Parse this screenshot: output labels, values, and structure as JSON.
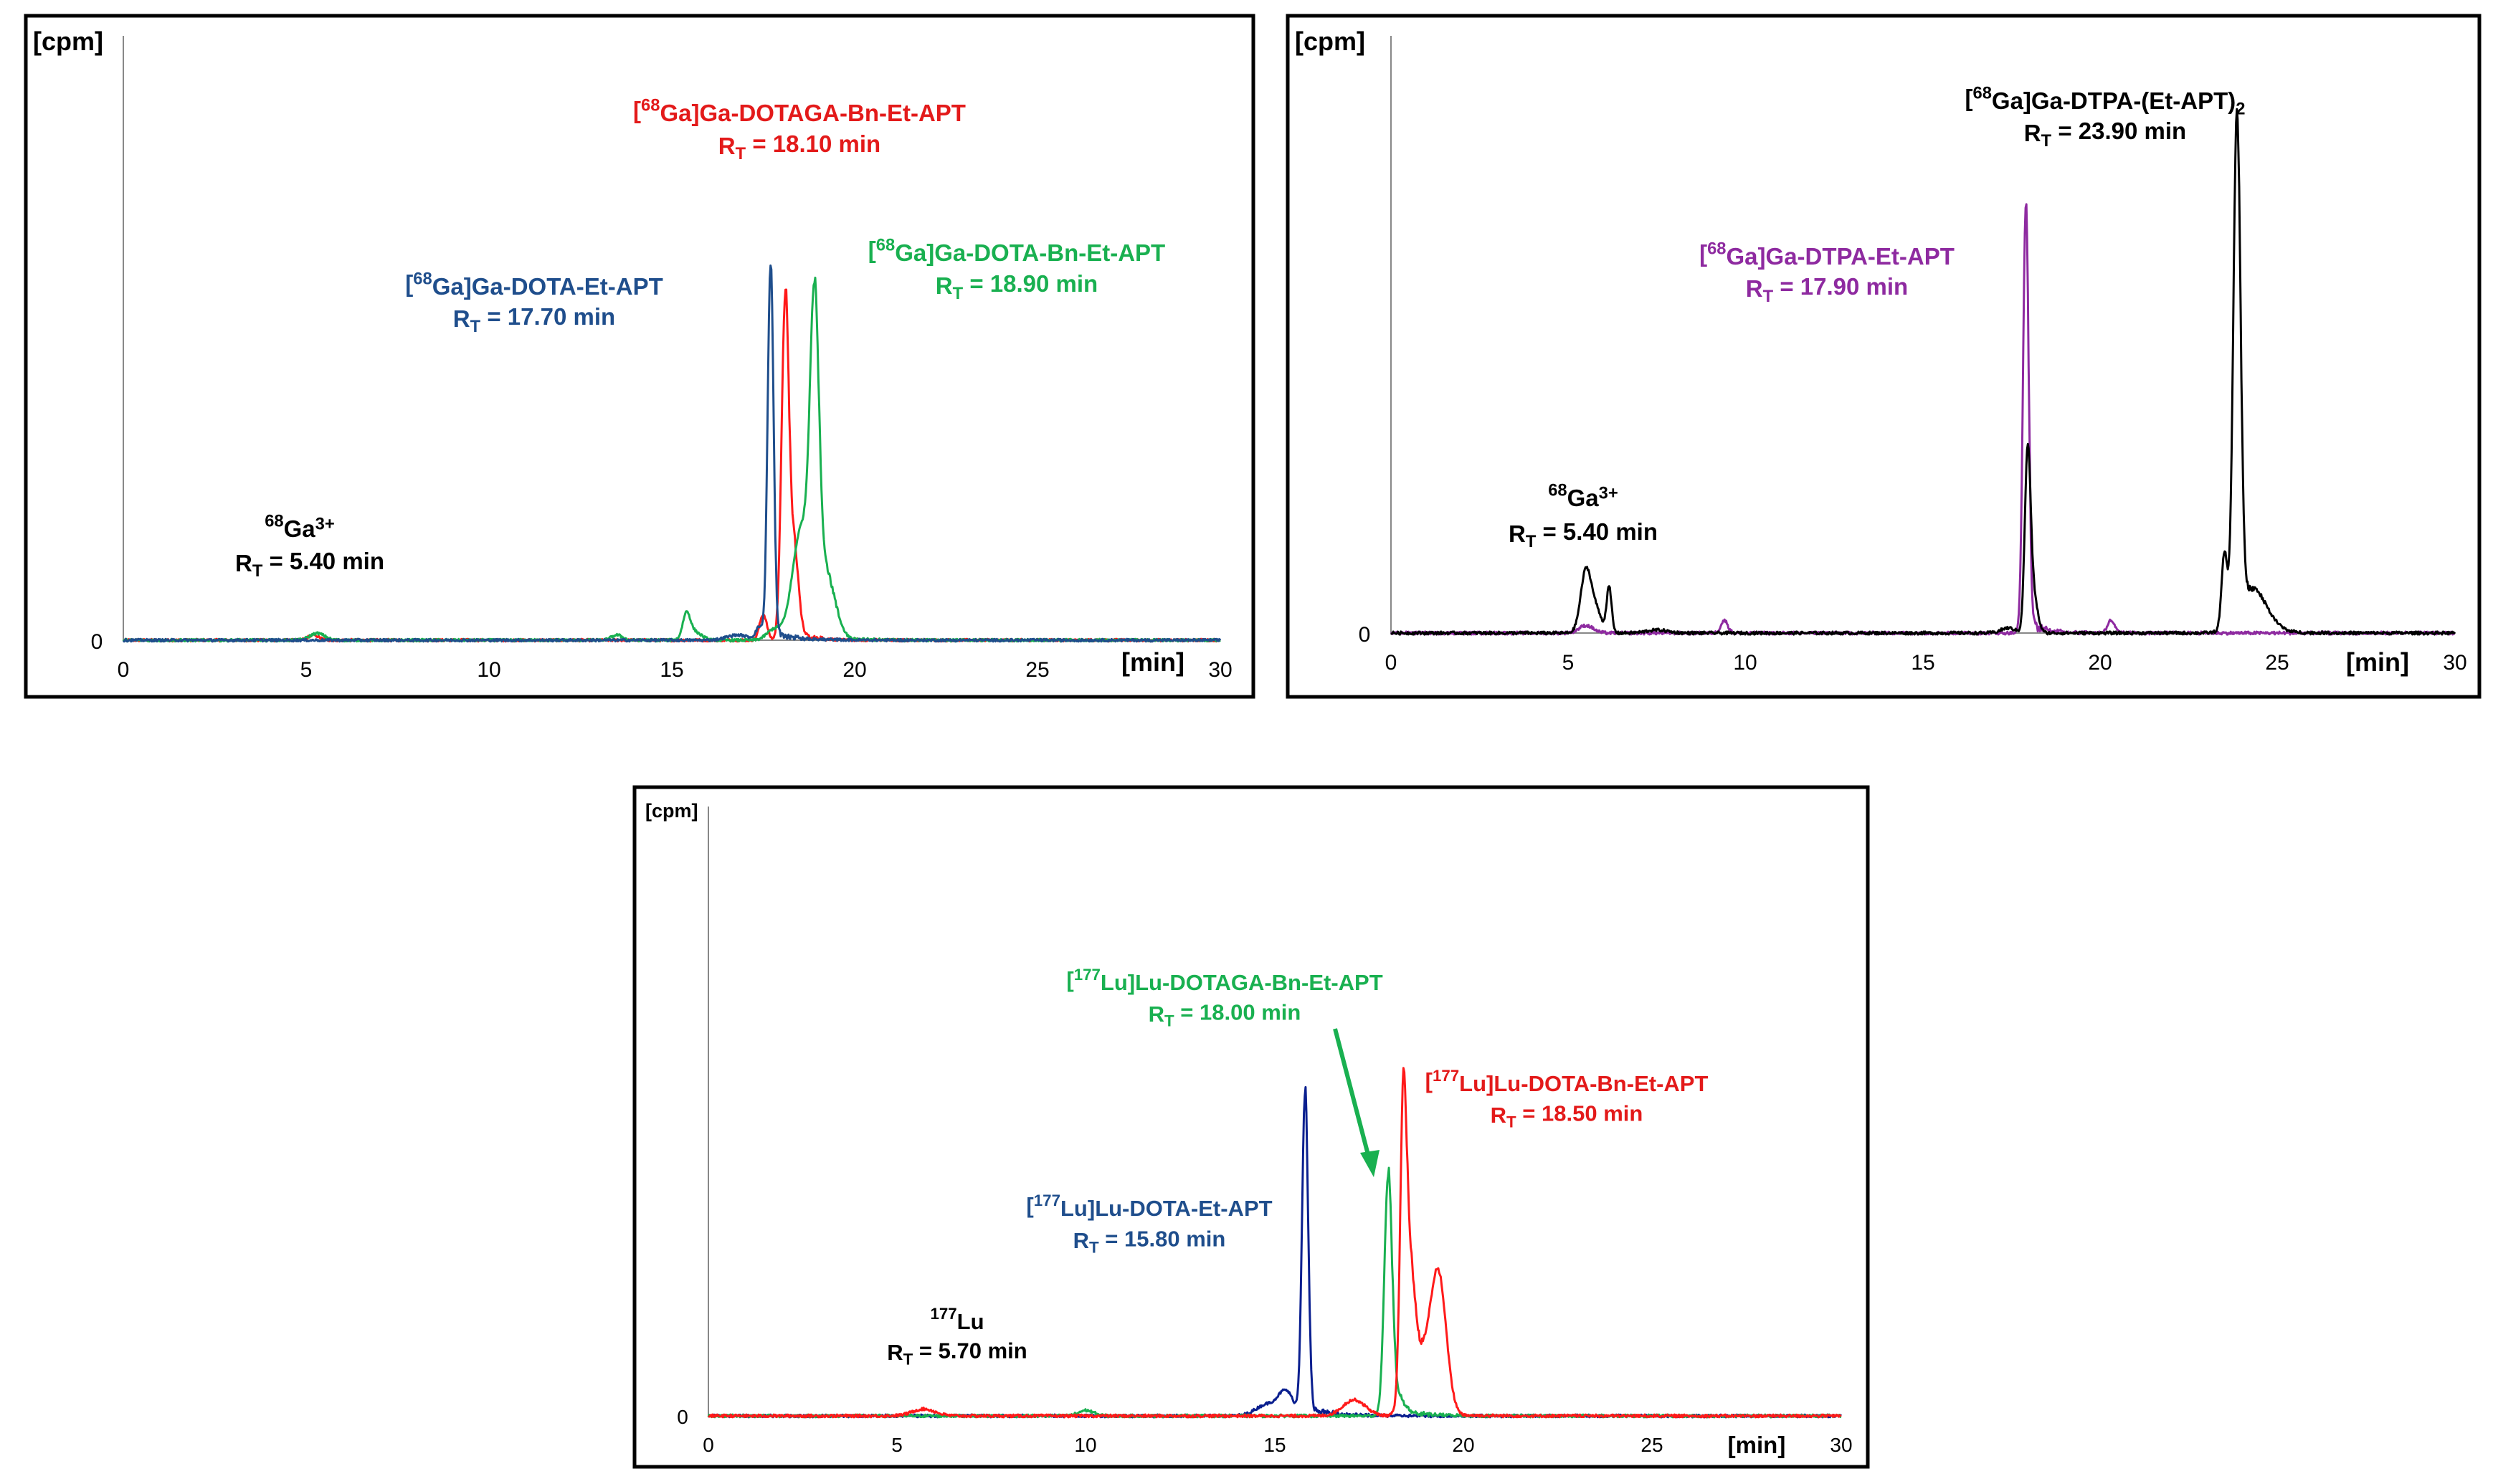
{
  "chart_data": [
    {
      "type": "line",
      "ylabel": "[cpm]",
      "xlabel": "[min]",
      "xlim": [
        0,
        30
      ],
      "x_ticks": [
        "0",
        "5",
        "10",
        "15",
        "20",
        "25",
        "30"
      ],
      "y_ticks": [
        "0"
      ],
      "series": [
        {
          "name": "[68Ga]Ga-DOTAGA-Bn-Et-APT",
          "color": "#ff1a1a",
          "peaks": [
            {
              "x": 5.2,
              "h": 0.012,
              "w": 0.15
            },
            {
              "x": 17.5,
              "h": 0.06,
              "w": 0.1
            },
            {
              "x": 18.1,
              "h": 0.78,
              "w": 0.1
            },
            {
              "x": 18.35,
              "h": 0.2,
              "w": 0.12
            }
          ],
          "tailx": 18.1
        },
        {
          "name": "[68Ga]Ga-DOTA-Bn-Et-APT",
          "color": "#19b050",
          "peaks": [
            {
              "x": 5.3,
              "h": 0.016,
              "w": 0.2
            },
            {
              "x": 13.5,
              "h": 0.012,
              "w": 0.15
            },
            {
              "x": 15.4,
              "h": 0.055,
              "w": 0.1
            },
            {
              "x": 15.6,
              "h": 0.02,
              "w": 0.2
            },
            {
              "x": 17.8,
              "h": 0.025,
              "w": 0.2
            },
            {
              "x": 18.55,
              "h": 0.26,
              "w": 0.25
            },
            {
              "x": 18.9,
              "h": 0.66,
              "w": 0.12
            },
            {
              "x": 19.2,
              "h": 0.15,
              "w": 0.25
            }
          ],
          "tailx": 18.9
        },
        {
          "name": "[68Ga]Ga-DOTA-Et-APT",
          "color": "#1f4e8c",
          "peaks": [
            {
              "x": 16.8,
              "h": 0.012,
              "w": 0.3
            },
            {
              "x": 17.4,
              "h": 0.03,
              "w": 0.1
            },
            {
              "x": 17.7,
              "h": 0.87,
              "w": 0.08
            }
          ],
          "tailx": 17.7
        }
      ],
      "annotations": [
        {
          "label": "[68Ga]Ga-DOTAGA-Bn-Et-APT",
          "rt": "RT = 18.10 min",
          "color": "#e31a1a"
        },
        {
          "label": "[68Ga]Ga-DOTA-Et-APT",
          "rt": "RT = 17.70 min",
          "color": "#1f4e8c"
        },
        {
          "label": "[68Ga]Ga-DOTA-Bn-Et-APT",
          "rt": "RT = 18.90 min",
          "color": "#19b050"
        },
        {
          "label": "68Ga3+",
          "rt": "RT = 5.40 min",
          "color": "#000000"
        }
      ]
    },
    {
      "type": "line",
      "ylabel": "[cpm]",
      "xlabel": "[min]",
      "xlim": [
        0,
        30
      ],
      "x_ticks": [
        "0",
        "5",
        "10",
        "15",
        "20",
        "25",
        "30"
      ],
      "y_ticks": [
        "0"
      ],
      "series": [
        {
          "name": "[68Ga]Ga-DTPA-Et-APT",
          "color": "#8e2aa0",
          "peaks": [
            {
              "x": 5.5,
              "h": 0.015,
              "w": 0.2
            },
            {
              "x": 9.4,
              "h": 0.025,
              "w": 0.1
            },
            {
              "x": 17.9,
              "h": 0.85,
              "w": 0.08
            },
            {
              "x": 20.3,
              "h": 0.025,
              "w": 0.1
            }
          ],
          "tailx": 17.9
        },
        {
          "name": "[68Ga]Ga-DTPA-(Et-APT)2",
          "color": "#000000",
          "peaks": [
            {
              "x": 5.5,
              "h": 0.125,
              "w": 0.15
            },
            {
              "x": 5.8,
              "h": 0.04,
              "w": 0.15
            },
            {
              "x": 6.15,
              "h": 0.09,
              "w": 0.07
            },
            {
              "x": 7.5,
              "h": 0.006,
              "w": 0.3
            },
            {
              "x": 17.4,
              "h": 0.01,
              "w": 0.2
            },
            {
              "x": 17.95,
              "h": 0.34,
              "w": 0.08
            },
            {
              "x": 18.1,
              "h": 0.08,
              "w": 0.12
            },
            {
              "x": 23.5,
              "h": 0.15,
              "w": 0.08
            },
            {
              "x": 23.85,
              "h": 1.0,
              "w": 0.1
            },
            {
              "x": 24.3,
              "h": 0.08,
              "w": 0.4
            }
          ],
          "tailx": 23.9
        }
      ],
      "annotations": [
        {
          "label": "[68Ga]Ga-DTPA-(Et-APT)2",
          "rt": "RT = 23.90 min",
          "color": "#000000"
        },
        {
          "label": "[68Ga]Ga-DTPA-Et-APT",
          "rt": "RT = 17.90 min",
          "color": "#8e2aa0"
        },
        {
          "label": "68Ga3+",
          "rt": "RT = 5.40 min",
          "color": "#000000"
        }
      ]
    },
    {
      "type": "line",
      "ylabel": "[cpm]",
      "xlabel": "[min]",
      "xlim": [
        0,
        30
      ],
      "x_ticks": [
        "0",
        "5",
        "10",
        "15",
        "20",
        "25",
        "30"
      ],
      "y_ticks": [
        "0"
      ],
      "series": [
        {
          "name": "[177Lu]Lu-DOTA-Et-APT",
          "color": "#0a1f8f",
          "peaks": [
            {
              "x": 14.8,
              "h": 0.025,
              "w": 0.3
            },
            {
              "x": 15.3,
              "h": 0.05,
              "w": 0.2
            },
            {
              "x": 15.8,
              "h": 0.7,
              "w": 0.08
            }
          ],
          "tailx": 15.8
        },
        {
          "name": "[177Lu]Lu-DOTAGA-Bn-Et-APT",
          "color": "#19b050",
          "peaks": [
            {
              "x": 10.0,
              "h": 0.012,
              "w": 0.2
            },
            {
              "x": 18.0,
              "h": 0.5,
              "w": 0.1
            },
            {
              "x": 18.2,
              "h": 0.04,
              "w": 0.2
            }
          ],
          "tailx": 18.0
        },
        {
          "name": "[177Lu]Lu-DOTA-Bn-Et-APT",
          "color": "#ff1a1a",
          "peaks": [
            {
              "x": 5.7,
              "h": 0.015,
              "w": 0.3
            },
            {
              "x": 17.1,
              "h": 0.035,
              "w": 0.3
            },
            {
              "x": 18.4,
              "h": 0.55,
              "w": 0.08
            },
            {
              "x": 18.55,
              "h": 0.3,
              "w": 0.15
            },
            {
              "x": 19.0,
              "h": 0.12,
              "w": 0.3
            },
            {
              "x": 19.35,
              "h": 0.25,
              "w": 0.2
            }
          ],
          "tailx": 18.5
        }
      ],
      "annotations": [
        {
          "label": "[177Lu]Lu-DOTAGA-Bn-Et-APT",
          "rt": "RT = 18.00 min",
          "color": "#19b050"
        },
        {
          "label": "[177Lu]Lu-DOTA-Bn-Et-APT",
          "rt": "RT = 18.50 min",
          "color": "#e31a1a"
        },
        {
          "label": "[177Lu]Lu-DOTA-Et-APT",
          "rt": "RT = 15.80 min",
          "color": "#1f4e8c"
        },
        {
          "label": "177Lu",
          "rt": "RT = 5.70 min",
          "color": "#000000"
        }
      ]
    }
  ]
}
